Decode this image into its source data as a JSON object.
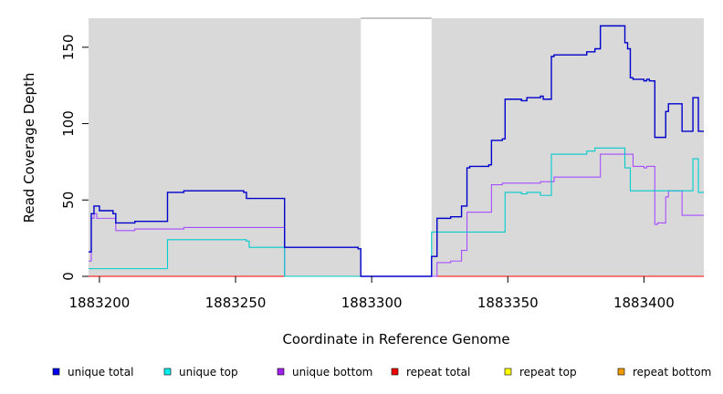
{
  "chart_data": {
    "type": "line",
    "title": "",
    "xlabel": "Coordinate in Reference Genome",
    "ylabel": "Read Coverage Depth",
    "xlim": [
      1883196,
      1883422
    ],
    "ylim": [
      0,
      169
    ],
    "x_ticks": [
      1883200,
      1883250,
      1883300,
      1883350,
      1883400
    ],
    "y_ticks": [
      0,
      50,
      100,
      150
    ],
    "grid": false,
    "gap_region": [
      1883296,
      1883322
    ],
    "legend_position": "bottom",
    "series": [
      {
        "name": "unique total",
        "color": "#0000cc",
        "legend_color": "#0000ee",
        "points": [
          [
            1883196,
            16
          ],
          [
            1883197,
            41
          ],
          [
            1883198,
            46
          ],
          [
            1883200,
            43
          ],
          [
            1883205,
            41
          ],
          [
            1883206,
            35
          ],
          [
            1883213,
            36
          ],
          [
            1883225,
            55
          ],
          [
            1883231,
            56
          ],
          [
            1883253,
            55
          ],
          [
            1883254,
            51
          ],
          [
            1883268,
            19
          ],
          [
            1883295,
            18
          ],
          [
            1883296,
            0
          ],
          [
            1883322,
            13
          ],
          [
            1883324,
            38
          ],
          [
            1883329,
            39
          ],
          [
            1883333,
            46
          ],
          [
            1883335,
            71
          ],
          [
            1883336,
            72
          ],
          [
            1883343,
            73
          ],
          [
            1883344,
            89
          ],
          [
            1883348,
            90
          ],
          [
            1883349,
            116
          ],
          [
            1883355,
            115
          ],
          [
            1883357,
            117
          ],
          [
            1883362,
            118
          ],
          [
            1883363,
            116
          ],
          [
            1883366,
            144
          ],
          [
            1883367,
            145
          ],
          [
            1883379,
            147
          ],
          [
            1883382,
            149
          ],
          [
            1883384,
            164
          ],
          [
            1883393,
            153
          ],
          [
            1883394,
            149
          ],
          [
            1883395,
            130
          ],
          [
            1883396,
            129
          ],
          [
            1883400,
            128
          ],
          [
            1883401,
            129
          ],
          [
            1883402,
            128
          ],
          [
            1883404,
            91
          ],
          [
            1883405,
            91
          ],
          [
            1883408,
            108
          ],
          [
            1883409,
            113
          ],
          [
            1883414,
            95
          ],
          [
            1883418,
            117
          ],
          [
            1883420,
            95
          ]
        ]
      },
      {
        "name": "unique top",
        "color": "#00cccc",
        "legend_color": "#00eeee",
        "points": [
          [
            1883196,
            5
          ],
          [
            1883225,
            24
          ],
          [
            1883254,
            23
          ],
          [
            1883255,
            19
          ],
          [
            1883268,
            0
          ],
          [
            1883322,
            29
          ],
          [
            1883349,
            55
          ],
          [
            1883355,
            54
          ],
          [
            1883357,
            55
          ],
          [
            1883362,
            53
          ],
          [
            1883366,
            80
          ],
          [
            1883379,
            82
          ],
          [
            1883382,
            84
          ],
          [
            1883393,
            71
          ],
          [
            1883395,
            56
          ],
          [
            1883408,
            56
          ],
          [
            1883418,
            77
          ],
          [
            1883420,
            55
          ]
        ]
      },
      {
        "name": "unique bottom",
        "color": "#a64dff",
        "legend_color": "#a020f0",
        "points": [
          [
            1883196,
            10
          ],
          [
            1883197,
            38
          ],
          [
            1883198,
            41
          ],
          [
            1883199,
            38
          ],
          [
            1883206,
            30
          ],
          [
            1883213,
            31
          ],
          [
            1883231,
            32
          ],
          [
            1883268,
            0
          ],
          [
            1883324,
            9
          ],
          [
            1883329,
            10
          ],
          [
            1883333,
            17
          ],
          [
            1883335,
            42
          ],
          [
            1883344,
            60
          ],
          [
            1883348,
            61
          ],
          [
            1883362,
            62
          ],
          [
            1883366,
            62
          ],
          [
            1883367,
            65
          ],
          [
            1883384,
            80
          ],
          [
            1883396,
            72
          ],
          [
            1883400,
            71
          ],
          [
            1883401,
            72
          ],
          [
            1883404,
            34
          ],
          [
            1883405,
            35
          ],
          [
            1883408,
            52
          ],
          [
            1883409,
            56
          ],
          [
            1883414,
            40
          ],
          [
            1883420,
            40
          ]
        ]
      },
      {
        "name": "repeat total",
        "color": "#ff0000",
        "legend_color": "#ee0000",
        "points": [
          [
            1883196,
            0
          ],
          [
            1883422,
            0
          ]
        ]
      },
      {
        "name": "repeat top",
        "color": "#ffff00",
        "legend_color": "#ffff00",
        "points": [
          [
            1883196,
            0
          ],
          [
            1883422,
            0
          ]
        ]
      },
      {
        "name": "repeat bottom",
        "color": "#ff9900",
        "legend_color": "#ee9a00",
        "points": [
          [
            1883196,
            0
          ],
          [
            1883422,
            0
          ]
        ]
      }
    ]
  }
}
